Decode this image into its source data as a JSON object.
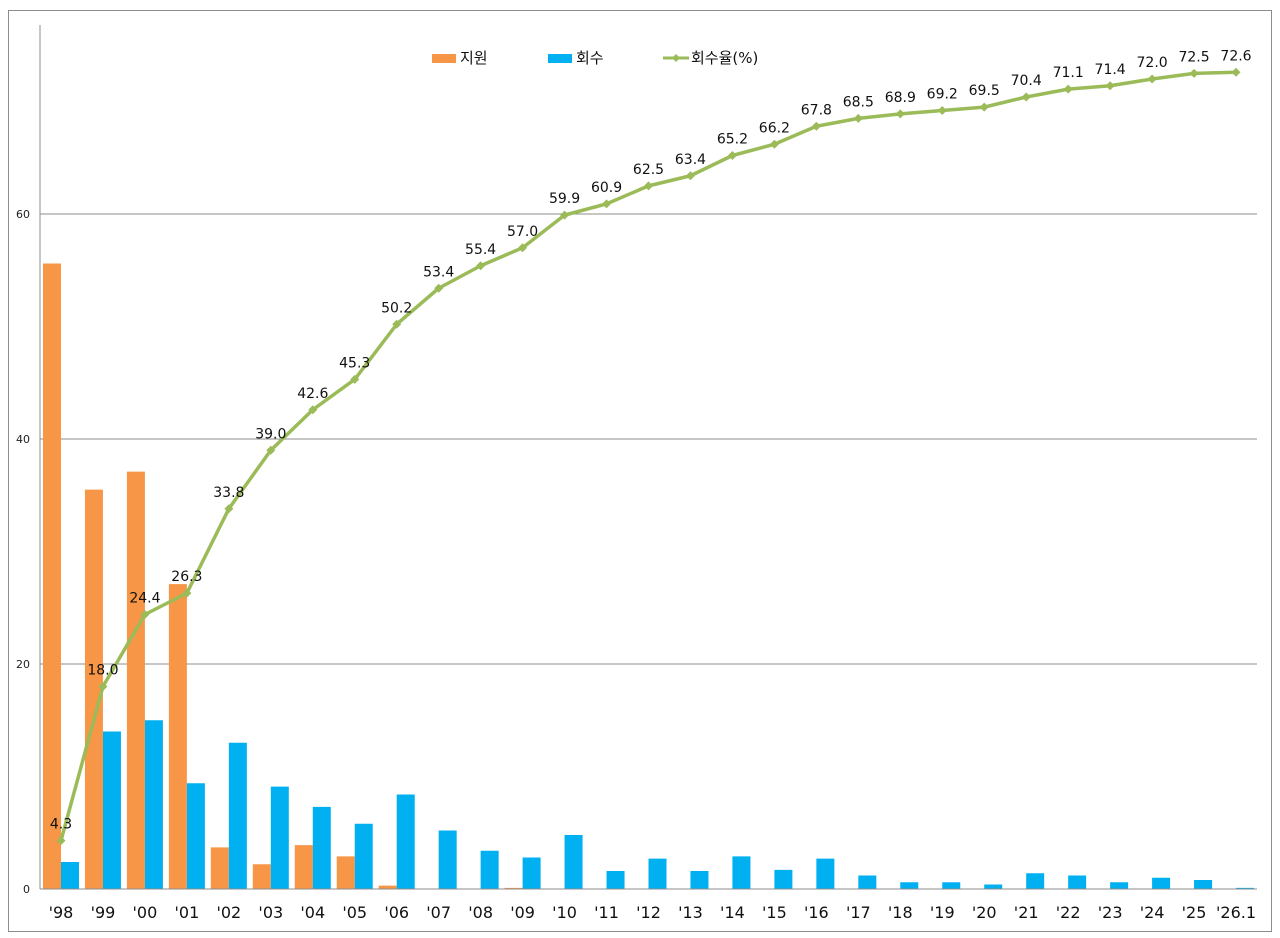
{
  "chart_data": {
    "type": "bar",
    "categories": [
      "'98",
      "'99",
      "'00",
      "'01",
      "'02",
      "'03",
      "'04",
      "'05",
      "'06",
      "'07",
      "'08",
      "'09",
      "'10",
      "'11",
      "'12",
      "'13",
      "'14",
      "'15",
      "'16",
      "'17",
      "'18",
      "'19",
      "'20",
      "'21",
      "'22",
      "'23",
      "'24",
      "'25",
      "'26.1"
    ],
    "series": [
      {
        "name": "지원",
        "type": "bar",
        "color": "#F79646",
        "values": [
          55.6,
          35.5,
          37.1,
          27.1,
          3.7,
          2.2,
          3.9,
          2.9,
          0.3,
          0,
          0,
          0.1,
          0,
          0,
          0,
          0,
          0,
          0,
          0,
          0,
          0,
          0,
          0,
          0,
          0,
          0,
          0,
          0,
          0
        ]
      },
      {
        "name": "회수",
        "type": "bar",
        "color": "#00B0F0",
        "values": [
          2.4,
          14.0,
          15.0,
          9.4,
          13.0,
          9.1,
          7.3,
          5.8,
          8.4,
          5.2,
          3.4,
          2.8,
          4.8,
          1.6,
          2.7,
          1.6,
          2.9,
          1.7,
          2.7,
          1.2,
          0.6,
          0.6,
          0.4,
          1.4,
          1.2,
          0.6,
          1.0,
          0.8,
          0.1
        ]
      },
      {
        "name": "회수율(%)",
        "type": "line",
        "color": "#9BBB59",
        "values": [
          4.3,
          18.0,
          24.4,
          26.3,
          33.8,
          39.0,
          42.6,
          45.3,
          50.2,
          53.4,
          55.4,
          57.0,
          59.9,
          60.9,
          62.5,
          63.4,
          65.2,
          66.2,
          67.8,
          68.5,
          68.9,
          69.2,
          69.5,
          70.4,
          71.1,
          71.4,
          72.0,
          72.5,
          72.6
        ],
        "labels": [
          "4.3",
          "18.0",
          "24.4",
          "26.3",
          "33.8",
          "39.0",
          "42.6",
          "45.3",
          "50.2",
          "53.4",
          "55.4",
          "57.0",
          "59.9",
          "60.9",
          "62.5",
          "63.4",
          "65.2",
          "66.2",
          "67.8",
          "68.5",
          "68.9",
          "69.2",
          "69.5",
          "70.4",
          "71.1",
          "71.4",
          "72.0",
          "72.5",
          "72.6"
        ]
      }
    ],
    "yticks": [
      "0",
      "20",
      "40",
      "60"
    ],
    "ylim": [
      0,
      77
    ],
    "grid": true,
    "legend_position": "top-center"
  }
}
